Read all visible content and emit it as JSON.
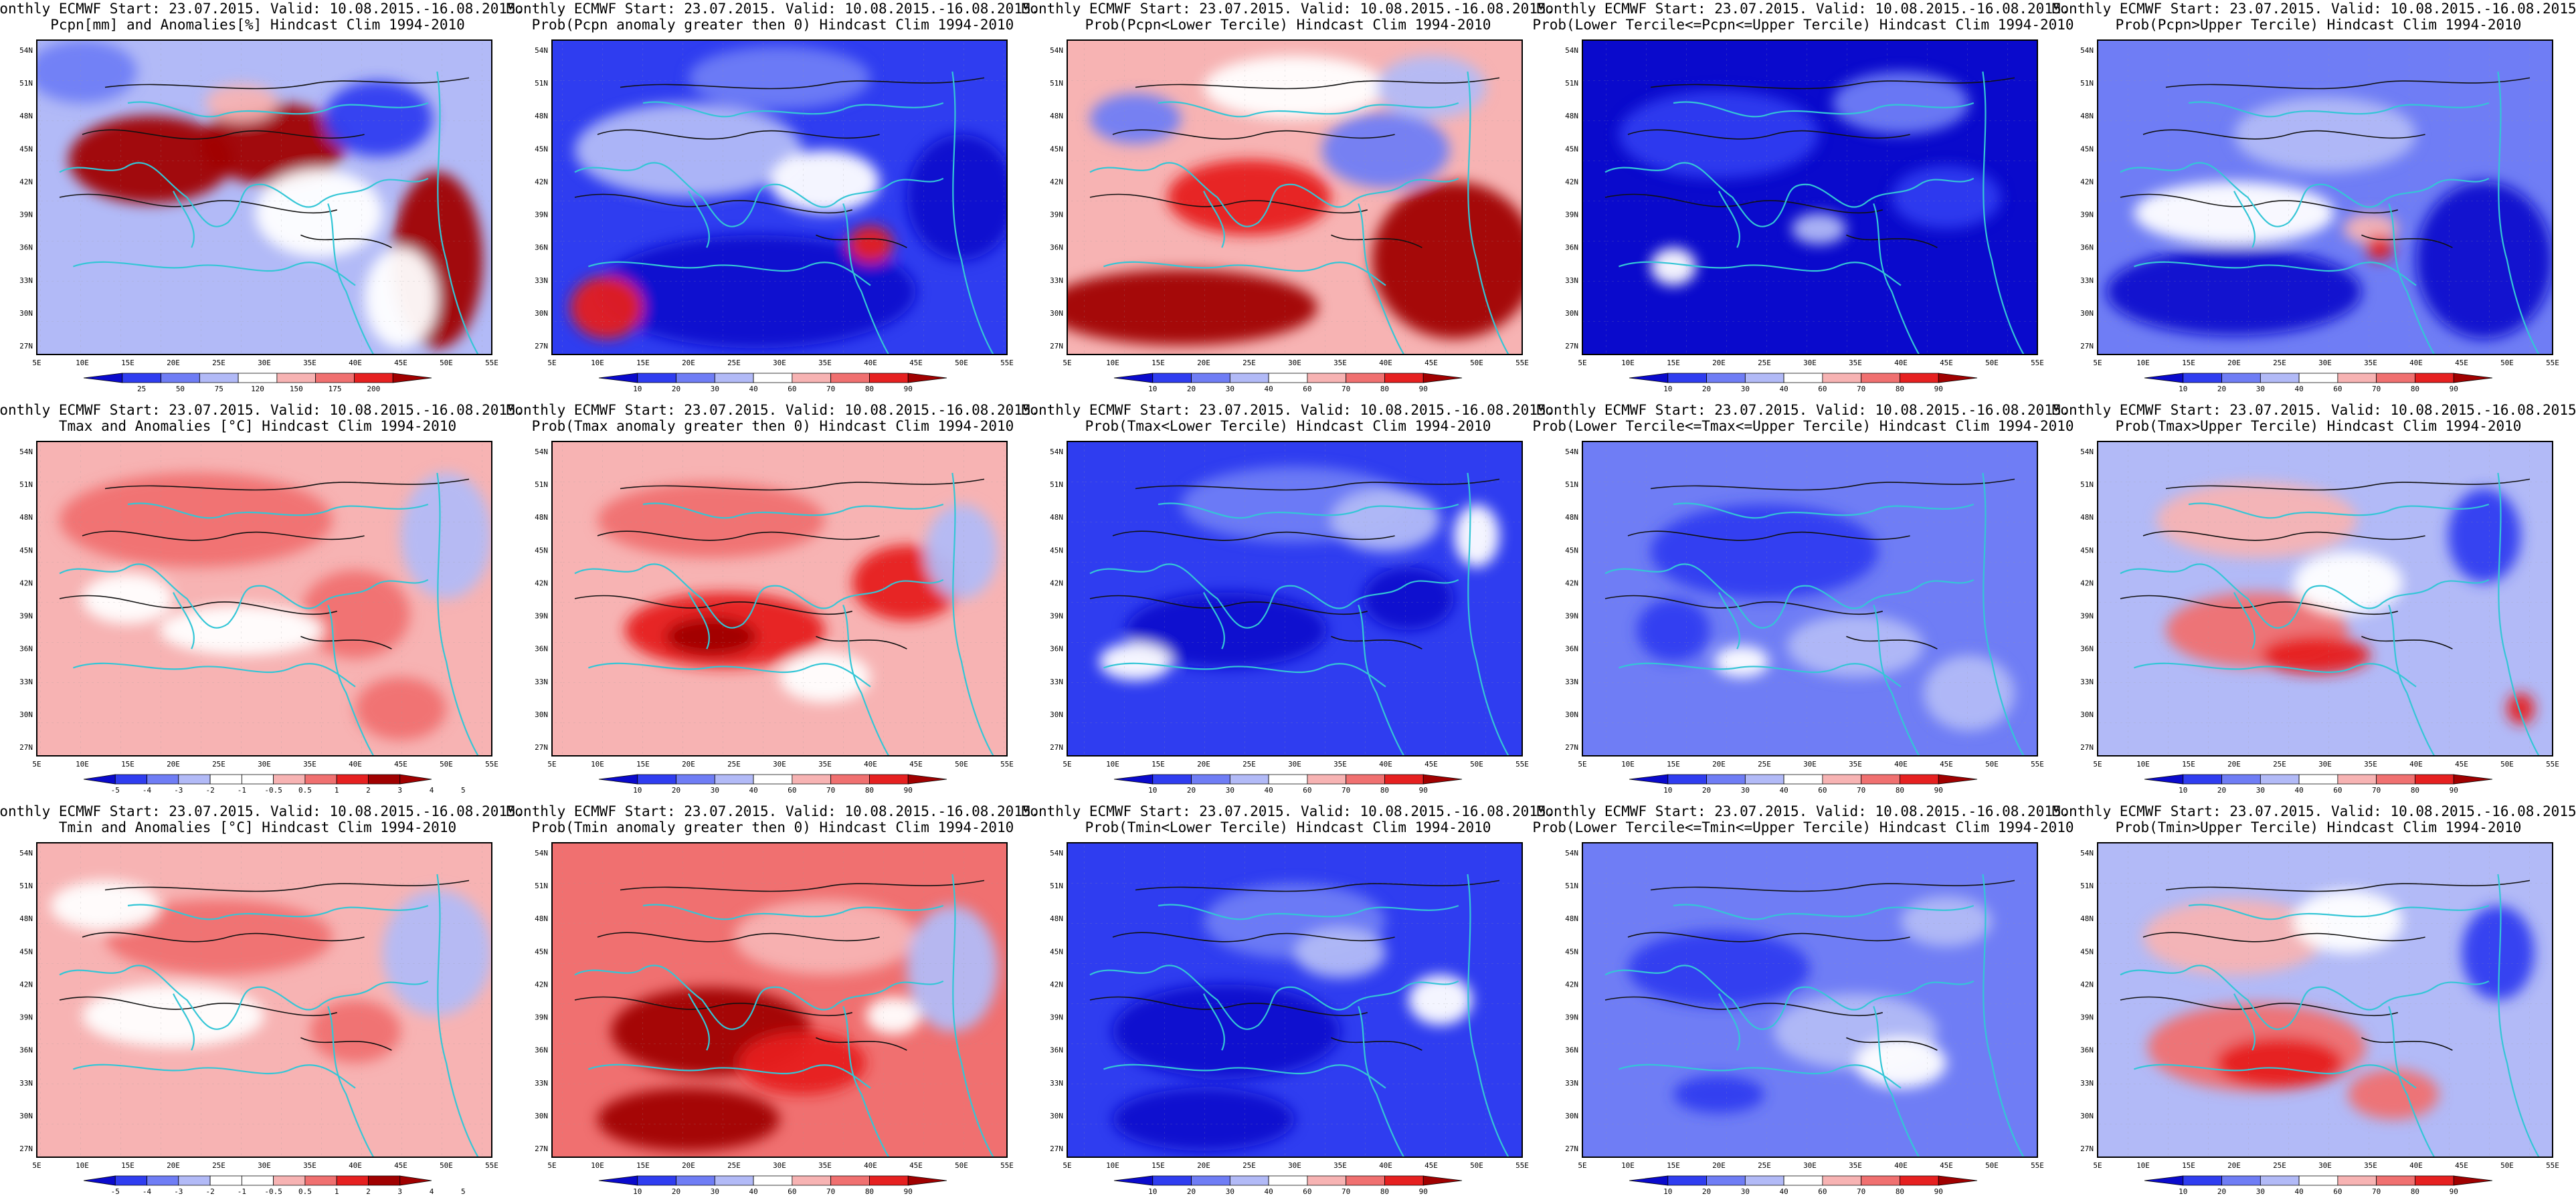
{
  "lon_labels": [
    "5E",
    "10E",
    "15E",
    "20E",
    "25E",
    "30E",
    "35E",
    "40E",
    "45E",
    "50E",
    "55E"
  ],
  "lat_labels": [
    "54N",
    "51N",
    "48N",
    "45N",
    "42N",
    "39N",
    "36N",
    "33N",
    "30N",
    "27N"
  ],
  "title_line1": "Monthly ECMWF Start: 23.07.2015. Valid: 10.08.2015.-16.08.2015.",
  "scales": {
    "pcpn": [
      "25",
      "50",
      "75",
      "120",
      "150",
      "175",
      "200"
    ],
    "temp": [
      "-5",
      "-4",
      "-3",
      "-2",
      "-1",
      "-0.5",
      "0.5",
      "1",
      "2",
      "3",
      "4",
      "5"
    ],
    "prob": [
      "10",
      "20",
      "30",
      "40",
      "60",
      "70",
      "80",
      "90"
    ]
  },
  "palette": {
    "dark_blue": "#0a0acc",
    "blue": "#2f3df0",
    "mid_blue": "#6f7df5",
    "light_blue": "#b2baf7",
    "white": "#ffffff",
    "light_red": "#f7b3b3",
    "mid_red": "#f07070",
    "red": "#e62020",
    "dark_red": "#a00000",
    "coast": "#34c6d6",
    "contour": "#111111"
  },
  "panels": [
    {
      "id": "pcpn-anom",
      "title2": "Pcpn[mm] and Anomalies[%] Hindcast Clim 1994-2010",
      "scale": "pcpn",
      "base": "light_blue",
      "blobs": [
        [
          "dark_red",
          0.25,
          0.38,
          0.18,
          0.14
        ],
        [
          "dark_red",
          0.52,
          0.33,
          0.16,
          0.13
        ],
        [
          "dark_red",
          0.88,
          0.7,
          0.1,
          0.28
        ],
        [
          "white",
          0.62,
          0.55,
          0.14,
          0.14
        ],
        [
          "white",
          0.8,
          0.82,
          0.08,
          0.16
        ],
        [
          "blue",
          0.75,
          0.25,
          0.12,
          0.12
        ],
        [
          "mid_blue",
          0.1,
          0.1,
          0.12,
          0.1
        ],
        [
          "light_red",
          0.45,
          0.2,
          0.08,
          0.06
        ]
      ]
    },
    {
      "id": "pcpn-prob-anom",
      "title2": "Prob(Pcpn anomaly greater then 0) Hindcast Clim 1994-2010",
      "scale": "prob",
      "base": "blue",
      "blobs": [
        [
          "dark_blue",
          0.45,
          0.8,
          0.35,
          0.18
        ],
        [
          "light_blue",
          0.3,
          0.35,
          0.25,
          0.15
        ],
        [
          "white",
          0.6,
          0.45,
          0.12,
          0.1
        ],
        [
          "red",
          0.12,
          0.85,
          0.08,
          0.1
        ],
        [
          "red",
          0.7,
          0.65,
          0.05,
          0.06
        ],
        [
          "dark_blue",
          0.9,
          0.5,
          0.12,
          0.2
        ],
        [
          "mid_blue",
          0.5,
          0.12,
          0.2,
          0.1
        ]
      ]
    },
    {
      "id": "pcpn-lower",
      "title2": "Prob(Pcpn<Lower Tercile) Hindcast Clim 1994-2010",
      "scale": "prob",
      "base": "light_red",
      "blobs": [
        [
          "dark_red",
          0.25,
          0.85,
          0.3,
          0.12
        ],
        [
          "dark_red",
          0.85,
          0.7,
          0.18,
          0.25
        ],
        [
          "red",
          0.4,
          0.5,
          0.18,
          0.12
        ],
        [
          "mid_blue",
          0.7,
          0.35,
          0.14,
          0.12
        ],
        [
          "mid_blue",
          0.15,
          0.25,
          0.1,
          0.08
        ],
        [
          "white",
          0.5,
          0.15,
          0.2,
          0.1
        ],
        [
          "light_blue",
          0.8,
          0.15,
          0.12,
          0.1
        ]
      ]
    },
    {
      "id": "pcpn-normal",
      "title2": "Prob(Lower Tercile<=Pcpn<=Upper Tercile) Hindcast Clim 1994-2010",
      "scale": "prob",
      "base": "dark_blue",
      "blobs": [
        [
          "blue",
          0.3,
          0.3,
          0.22,
          0.14
        ],
        [
          "mid_blue",
          0.7,
          0.2,
          0.15,
          0.1
        ],
        [
          "white",
          0.2,
          0.72,
          0.05,
          0.06
        ],
        [
          "light_blue",
          0.52,
          0.6,
          0.06,
          0.05
        ],
        [
          "blue",
          0.8,
          0.5,
          0.12,
          0.1
        ]
      ]
    },
    {
      "id": "pcpn-upper",
      "title2": "Prob(Pcpn>Upper Tercile) Hindcast Clim 1994-2010",
      "scale": "prob",
      "base": "mid_blue",
      "blobs": [
        [
          "dark_blue",
          0.3,
          0.8,
          0.28,
          0.14
        ],
        [
          "dark_blue",
          0.85,
          0.7,
          0.15,
          0.25
        ],
        [
          "white",
          0.3,
          0.55,
          0.22,
          0.1
        ],
        [
          "light_blue",
          0.5,
          0.3,
          0.2,
          0.12
        ],
        [
          "light_red",
          0.6,
          0.6,
          0.06,
          0.05
        ],
        [
          "red",
          0.62,
          0.66,
          0.03,
          0.04
        ]
      ]
    },
    {
      "id": "tmax-anom",
      "title2": "Tmax and Anomalies [°C] Hindcast Clim 1994-2010",
      "scale": "temp",
      "base": "light_red",
      "blobs": [
        [
          "mid_red",
          0.35,
          0.25,
          0.3,
          0.15
        ],
        [
          "mid_red",
          0.7,
          0.55,
          0.12,
          0.14
        ],
        [
          "white",
          0.45,
          0.6,
          0.18,
          0.08
        ],
        [
          "light_blue",
          0.9,
          0.3,
          0.1,
          0.2
        ],
        [
          "white",
          0.2,
          0.5,
          0.1,
          0.08
        ],
        [
          "mid_red",
          0.8,
          0.85,
          0.1,
          0.1
        ]
      ]
    },
    {
      "id": "tmax-prob-anom",
      "title2": "Prob(Tmax anomaly greater then 0) Hindcast Clim 1994-2010",
      "scale": "prob",
      "base": "light_red",
      "blobs": [
        [
          "red",
          0.38,
          0.6,
          0.22,
          0.12
        ],
        [
          "dark_red",
          0.35,
          0.62,
          0.1,
          0.06
        ],
        [
          "mid_red",
          0.35,
          0.25,
          0.25,
          0.12
        ],
        [
          "red",
          0.78,
          0.45,
          0.12,
          0.12
        ],
        [
          "white",
          0.6,
          0.75,
          0.1,
          0.08
        ],
        [
          "light_blue",
          0.9,
          0.35,
          0.08,
          0.15
        ]
      ]
    },
    {
      "id": "tmax-lower",
      "title2": "Prob(Tmax<Lower Tercile) Hindcast Clim 1994-2010",
      "scale": "prob",
      "base": "blue",
      "blobs": [
        [
          "dark_blue",
          0.35,
          0.6,
          0.22,
          0.12
        ],
        [
          "mid_blue",
          0.5,
          0.2,
          0.25,
          0.12
        ],
        [
          "light_blue",
          0.7,
          0.25,
          0.12,
          0.1
        ],
        [
          "white",
          0.15,
          0.7,
          0.08,
          0.06
        ],
        [
          "dark_blue",
          0.75,
          0.5,
          0.1,
          0.1
        ],
        [
          "white",
          0.9,
          0.3,
          0.05,
          0.1
        ]
      ]
    },
    {
      "id": "tmax-normal",
      "title2": "Prob(Lower Tercile<=Tmax<=Upper Tercile) Hindcast Clim 1994-2010",
      "scale": "prob",
      "base": "mid_blue",
      "blobs": [
        [
          "blue",
          0.4,
          0.35,
          0.25,
          0.15
        ],
        [
          "light_blue",
          0.6,
          0.65,
          0.15,
          0.1
        ],
        [
          "blue",
          0.2,
          0.6,
          0.08,
          0.1
        ],
        [
          "white",
          0.35,
          0.7,
          0.06,
          0.05
        ],
        [
          "light_blue",
          0.85,
          0.8,
          0.1,
          0.12
        ]
      ]
    },
    {
      "id": "tmax-upper",
      "title2": "Prob(Tmax>Upper Tercile) Hindcast Clim 1994-2010",
      "scale": "prob",
      "base": "light_blue",
      "blobs": [
        [
          "mid_red",
          0.35,
          0.6,
          0.2,
          0.12
        ],
        [
          "red",
          0.48,
          0.68,
          0.12,
          0.06
        ],
        [
          "light_red",
          0.35,
          0.25,
          0.22,
          0.12
        ],
        [
          "white",
          0.55,
          0.45,
          0.12,
          0.1
        ],
        [
          "blue",
          0.85,
          0.3,
          0.08,
          0.15
        ],
        [
          "red",
          0.93,
          0.85,
          0.03,
          0.05
        ]
      ]
    },
    {
      "id": "tmin-anom",
      "title2": "Tmin and Anomalies [°C] Hindcast Clim 1994-2010",
      "scale": "temp",
      "base": "light_red",
      "blobs": [
        [
          "mid_red",
          0.4,
          0.3,
          0.25,
          0.12
        ],
        [
          "white",
          0.3,
          0.55,
          0.2,
          0.1
        ],
        [
          "light_blue",
          0.88,
          0.35,
          0.12,
          0.2
        ],
        [
          "mid_red",
          0.7,
          0.6,
          0.1,
          0.1
        ],
        [
          "white",
          0.15,
          0.2,
          0.12,
          0.08
        ]
      ]
    },
    {
      "id": "tmin-prob-anom",
      "title2": "Prob(Tmin anomaly greater then 0) Hindcast Clim 1994-2010",
      "scale": "prob",
      "base": "mid_red",
      "blobs": [
        [
          "dark_red",
          0.35,
          0.6,
          0.22,
          0.14
        ],
        [
          "dark_red",
          0.3,
          0.88,
          0.2,
          0.1
        ],
        [
          "red",
          0.55,
          0.7,
          0.14,
          0.1
        ],
        [
          "light_red",
          0.6,
          0.3,
          0.2,
          0.12
        ],
        [
          "light_blue",
          0.88,
          0.4,
          0.1,
          0.2
        ],
        [
          "white",
          0.75,
          0.55,
          0.06,
          0.06
        ]
      ]
    },
    {
      "id": "tmin-lower",
      "title2": "Prob(Tmin<Lower Tercile) Hindcast Clim 1994-2010",
      "scale": "prob",
      "base": "blue",
      "blobs": [
        [
          "dark_blue",
          0.35,
          0.6,
          0.25,
          0.15
        ],
        [
          "dark_blue",
          0.3,
          0.88,
          0.2,
          0.1
        ],
        [
          "mid_blue",
          0.5,
          0.25,
          0.2,
          0.12
        ],
        [
          "light_blue",
          0.6,
          0.35,
          0.1,
          0.08
        ],
        [
          "white",
          0.82,
          0.5,
          0.07,
          0.08
        ]
      ]
    },
    {
      "id": "tmin-normal",
      "title2": "Prob(Lower Tercile<=Tmin<=Upper Tercile) Hindcast Clim 1994-2010",
      "scale": "prob",
      "base": "mid_blue",
      "blobs": [
        [
          "blue",
          0.3,
          0.4,
          0.2,
          0.12
        ],
        [
          "light_blue",
          0.6,
          0.6,
          0.18,
          0.12
        ],
        [
          "white",
          0.7,
          0.7,
          0.1,
          0.08
        ],
        [
          "blue",
          0.3,
          0.8,
          0.1,
          0.06
        ],
        [
          "light_blue",
          0.8,
          0.25,
          0.1,
          0.08
        ]
      ]
    },
    {
      "id": "tmin-upper",
      "title2": "Prob(Tmin>Upper Tercile) Hindcast Clim 1994-2010",
      "scale": "prob",
      "base": "light_blue",
      "blobs": [
        [
          "mid_red",
          0.35,
          0.65,
          0.24,
          0.14
        ],
        [
          "red",
          0.4,
          0.7,
          0.14,
          0.08
        ],
        [
          "light_red",
          0.3,
          0.3,
          0.2,
          0.12
        ],
        [
          "white",
          0.55,
          0.25,
          0.12,
          0.1
        ],
        [
          "blue",
          0.88,
          0.35,
          0.08,
          0.15
        ],
        [
          "mid_red",
          0.65,
          0.8,
          0.1,
          0.08
        ]
      ]
    }
  ]
}
